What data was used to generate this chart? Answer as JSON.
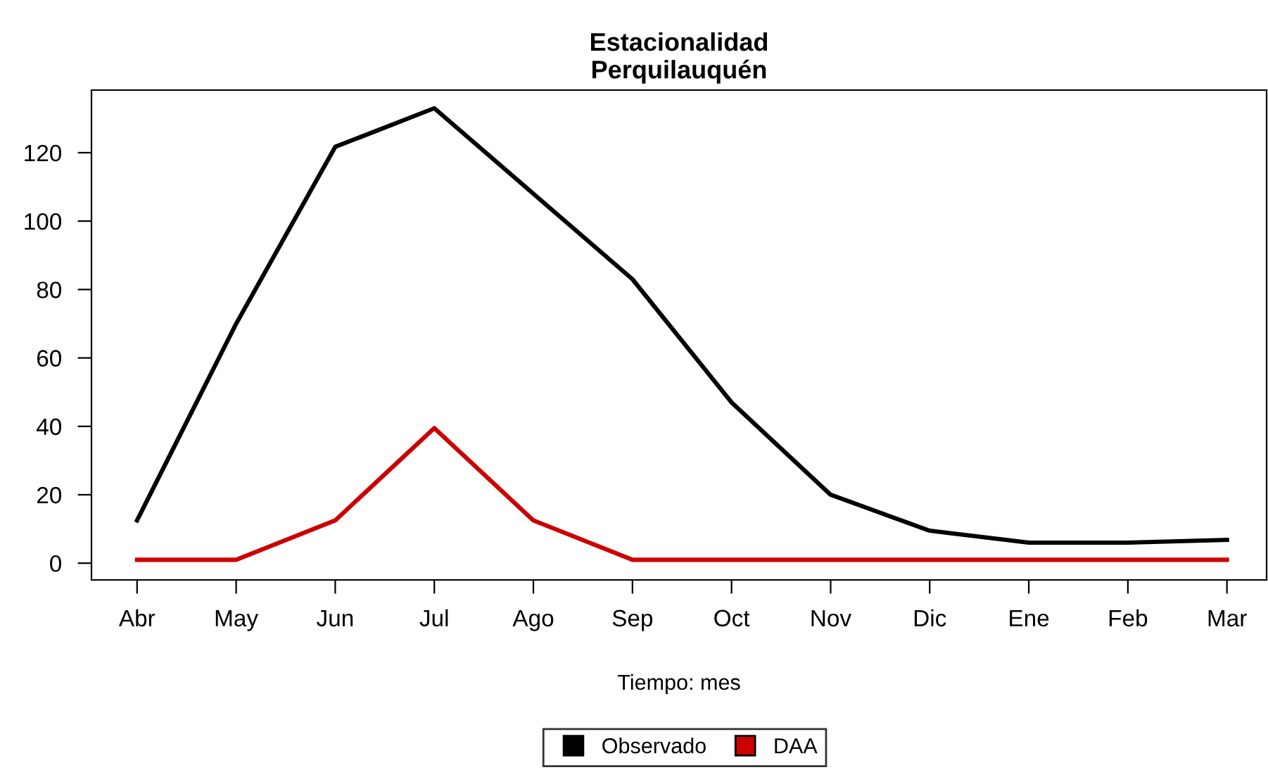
{
  "chart_data": {
    "type": "line",
    "title": "Estacionalidad\nPerquilauquén",
    "xlabel": "Tiempo: mes",
    "categories": [
      "Abr",
      "May",
      "Jun",
      "Jul",
      "Ago",
      "Sep",
      "Oct",
      "Nov",
      "Dic",
      "Ene",
      "Feb",
      "Mar"
    ],
    "series": [
      {
        "name": "Observado",
        "color": "#000000",
        "values": [
          12.5,
          70,
          121.7,
          133,
          108,
          83,
          47,
          20,
          9.5,
          6,
          6,
          6.8
        ]
      },
      {
        "name": "DAA",
        "color": "#cc0000",
        "values": [
          1,
          1,
          12.5,
          39.5,
          12.5,
          1,
          1,
          1,
          1,
          1,
          1,
          1
        ]
      }
    ],
    "ylim": [
      -4.9,
      138.3
    ],
    "yticks": [
      0,
      20,
      40,
      60,
      80,
      100,
      120
    ],
    "grid": false,
    "legend": "bottom",
    "line_style": "solid",
    "marker": "none"
  }
}
